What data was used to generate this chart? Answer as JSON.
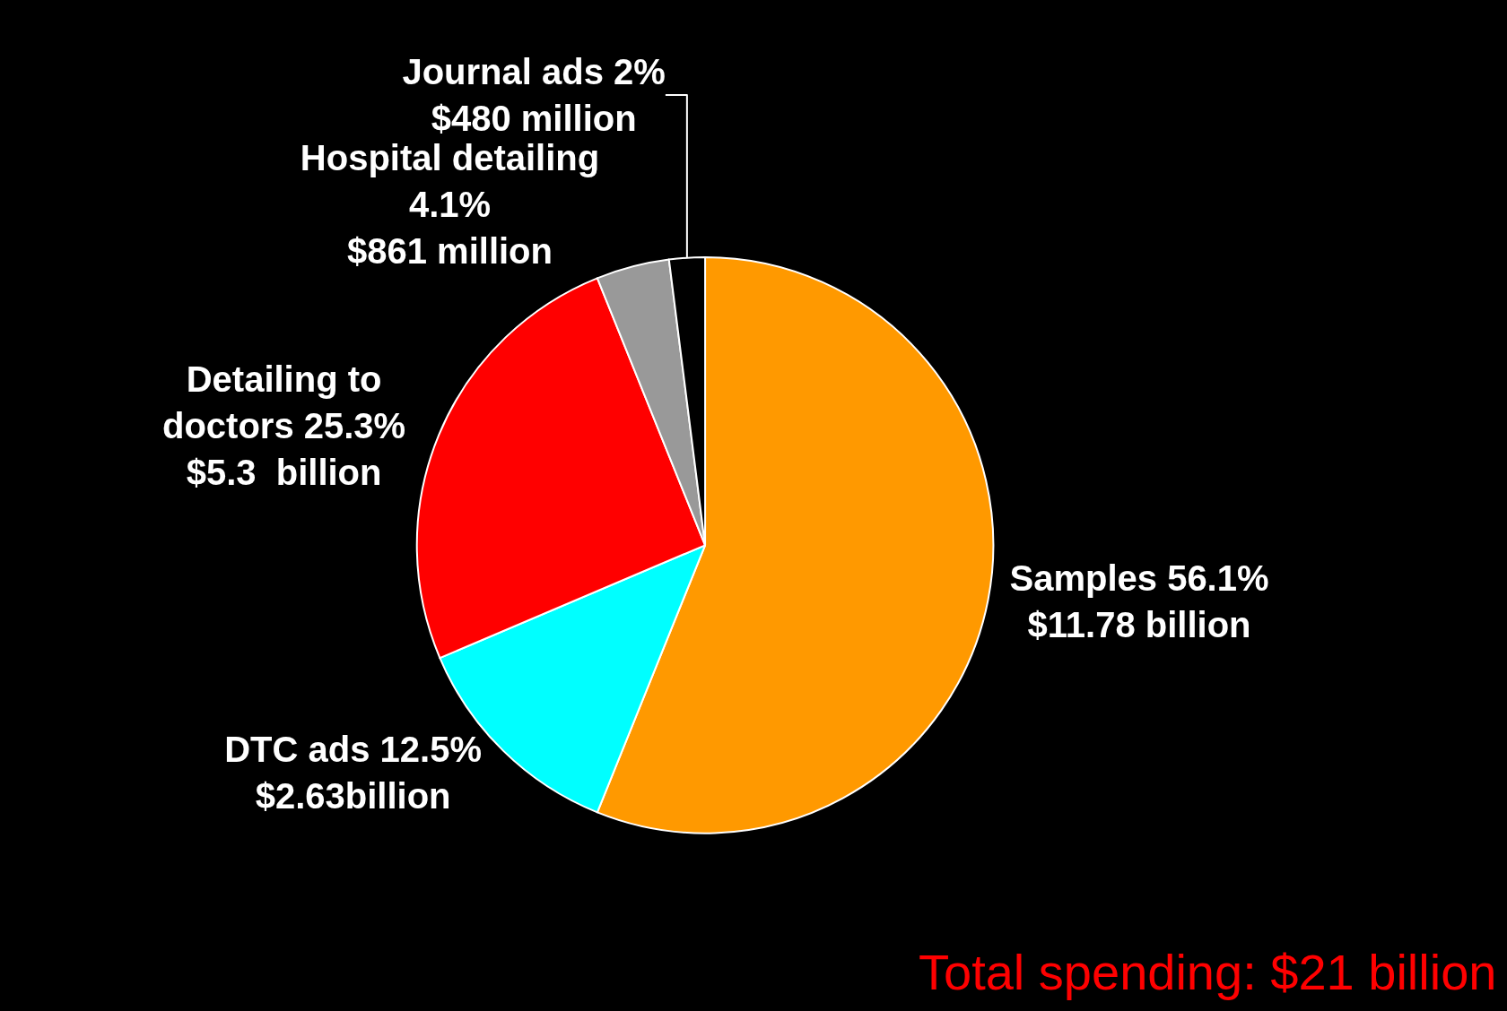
{
  "chart_data": {
    "type": "pie",
    "categories": [
      "Samples 56.1%\n$11.78 billion",
      "DTC ads 12.5%\n$2.63billion",
      "Detailing to\ndoctors 25.3%\n$5.3  billion",
      "Hospital detailing\n4.1%\n$861 million",
      "Journal ads 2%\n$480 million"
    ],
    "values": [
      56.1,
      12.5,
      25.3,
      4.1,
      2
    ],
    "colors": [
      "#ff9900",
      "#00ffff",
      "#ff0000",
      "#999999",
      "#000000"
    ],
    "annotations": [
      "Total spending: $21 billion"
    ]
  }
}
